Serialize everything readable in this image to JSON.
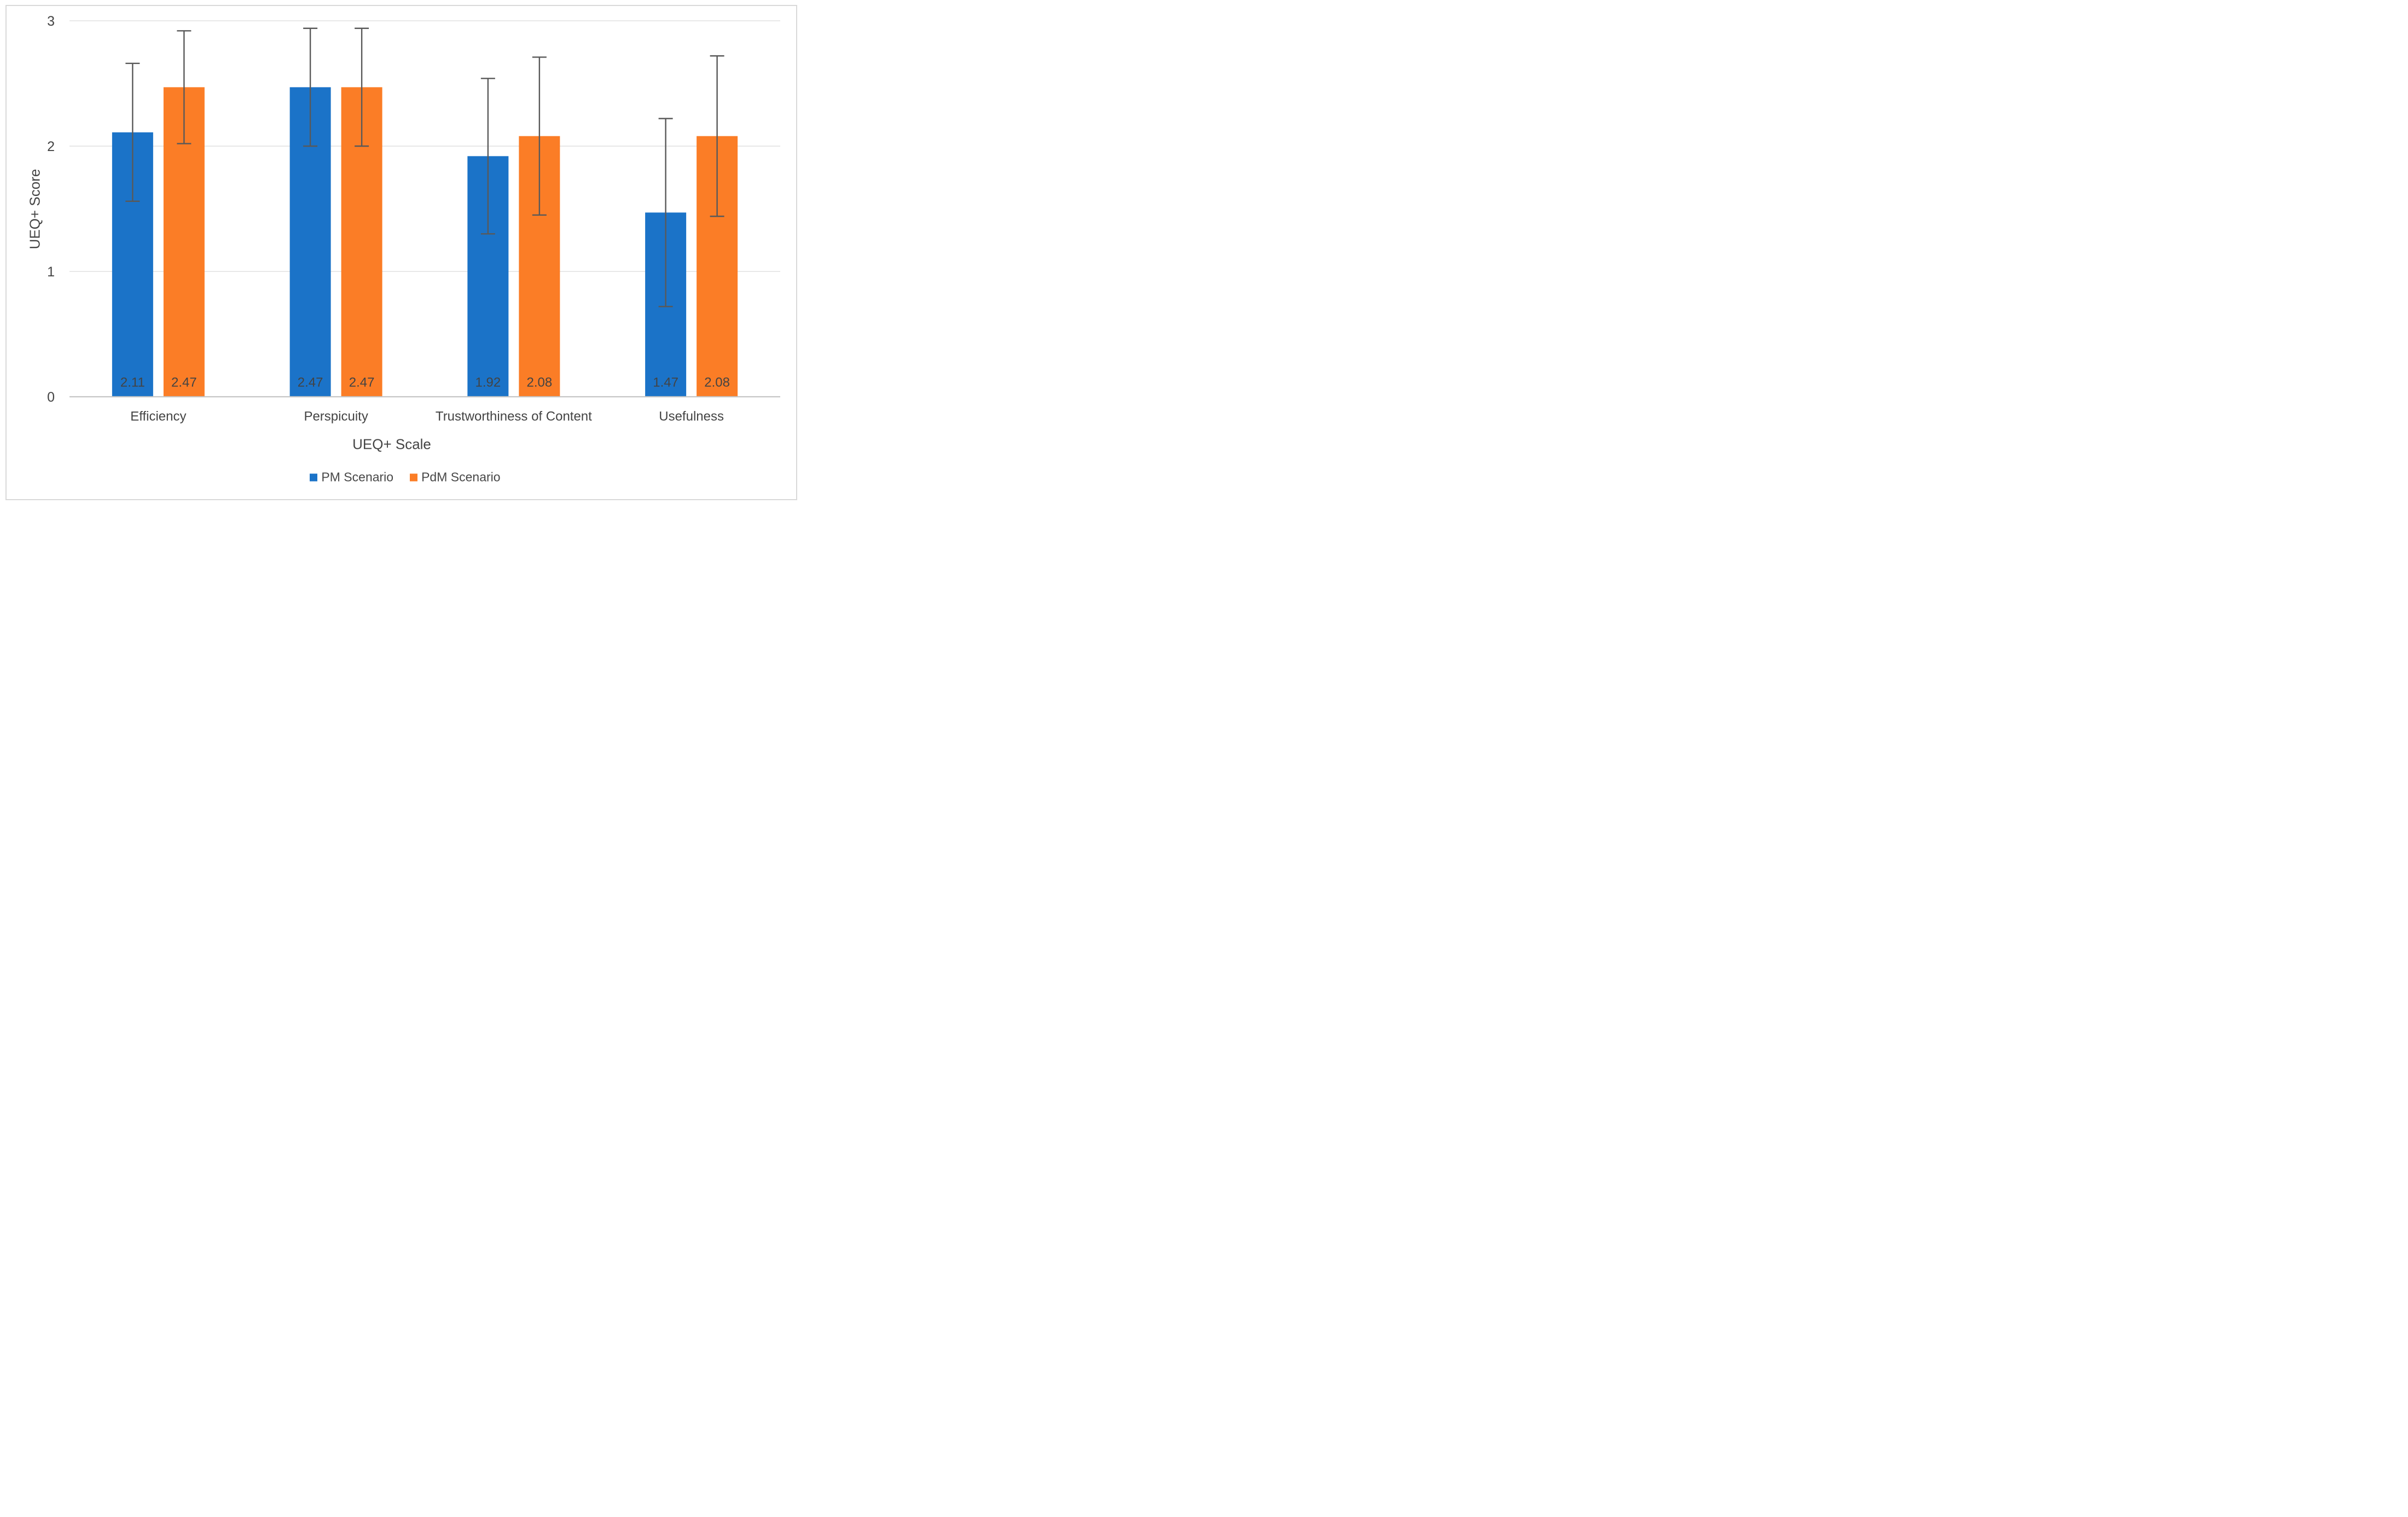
{
  "chart_data": {
    "type": "bar",
    "title": "",
    "categories": [
      "Efficiency",
      "Perspicuity",
      "Trustworthiness of Content",
      "Usefulness"
    ],
    "series": [
      {
        "name": "PM Scenario",
        "color": "#1B73C8",
        "values": [
          2.11,
          2.47,
          1.92,
          1.47
        ],
        "errors": [
          0.55,
          0.47,
          0.62,
          0.75
        ]
      },
      {
        "name": "PdM Scenario",
        "color": "#FB7D26",
        "values": [
          2.47,
          2.47,
          2.08,
          2.08
        ],
        "errors": [
          0.45,
          0.47,
          0.63,
          0.64
        ]
      }
    ],
    "data_labels": [
      [
        "2.11",
        "2.47",
        "1.92",
        "1.47"
      ],
      [
        "2.47",
        "2.47",
        "2.08",
        "2.08"
      ]
    ],
    "xlabel": "UEQ+ Scale",
    "ylabel": "UEQ+ Score",
    "ylim": [
      0,
      3
    ],
    "yticks": [
      0,
      1,
      2,
      3
    ],
    "grid": true,
    "legend_position": "bottom",
    "error_bars": true
  },
  "colors": {
    "grid": "#d9d9d9",
    "axis_line": "#c6c6c6",
    "error_bar": "#595959",
    "text": "#434343",
    "frame_border": "#d9d9d9",
    "background": "#ffffff"
  }
}
